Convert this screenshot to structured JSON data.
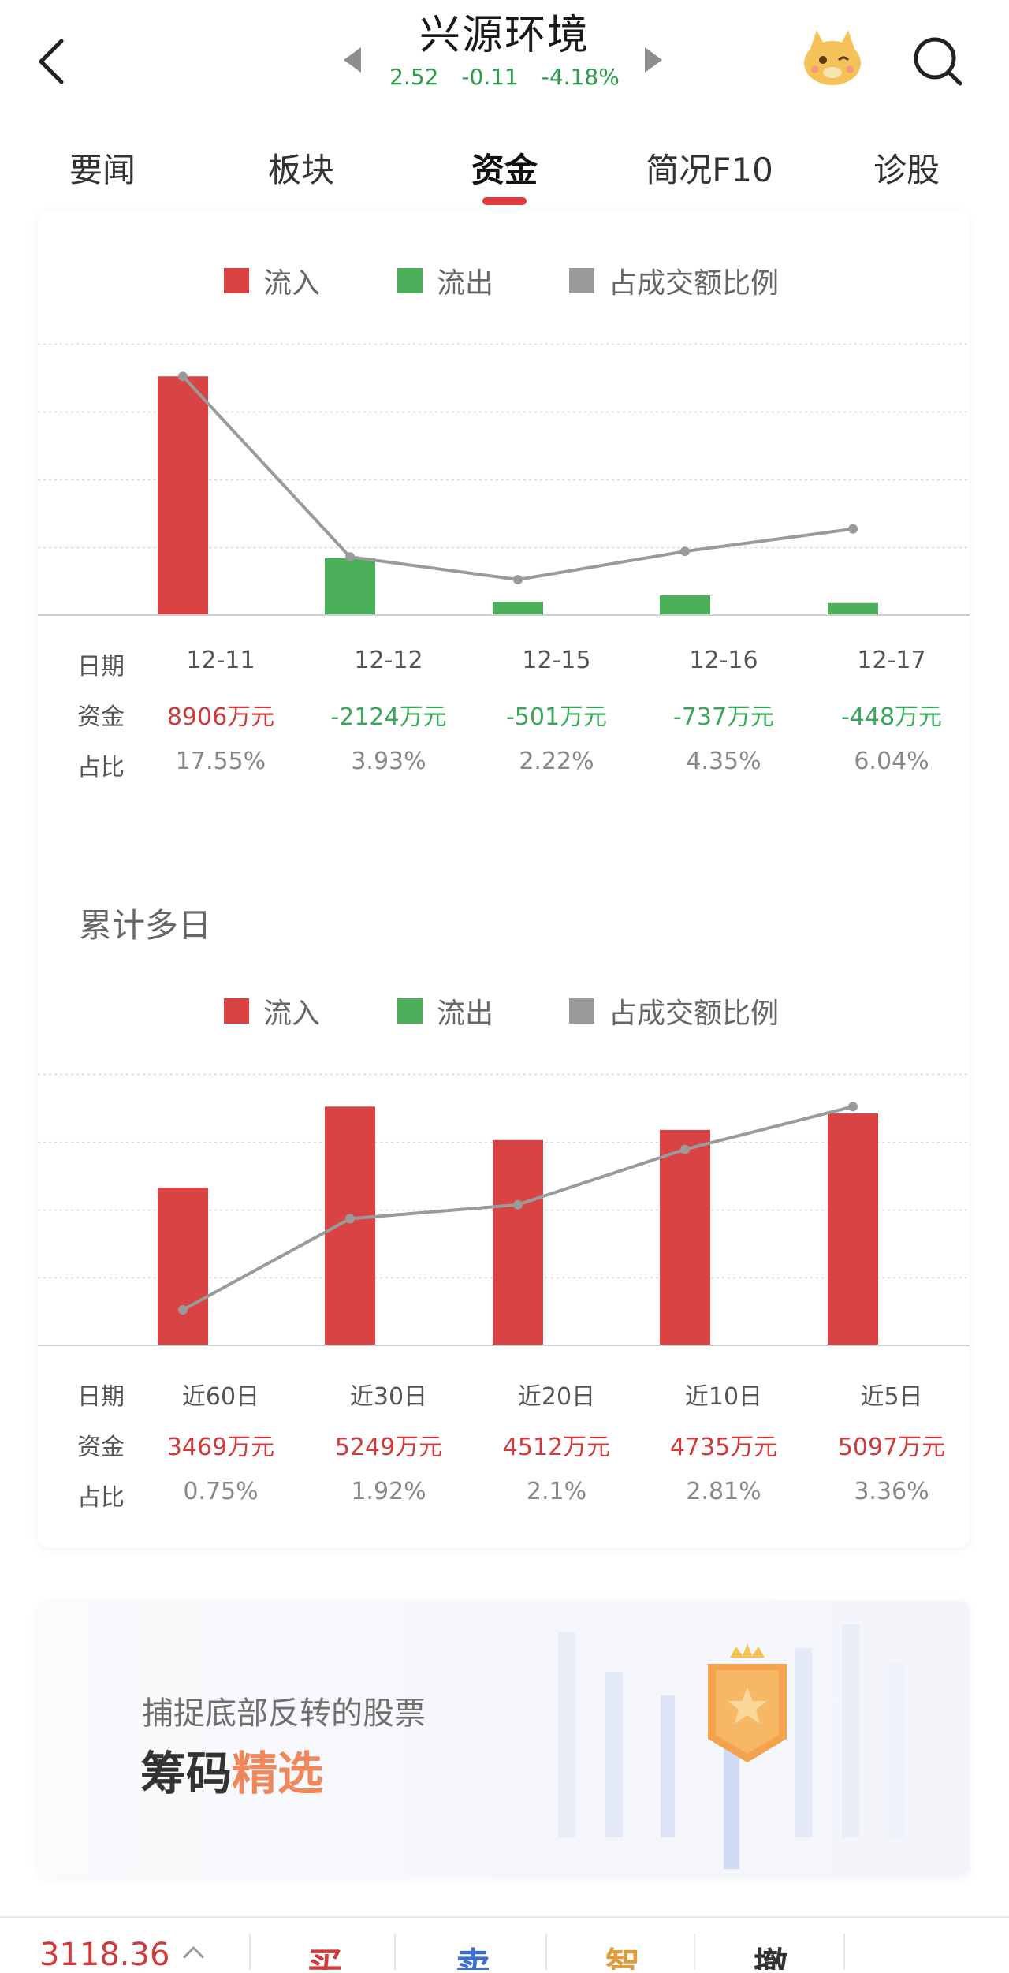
{
  "header": {
    "stock_name": "兴源环境",
    "price": "2.52",
    "change": "-0.11",
    "change_pct": "-4.18%",
    "quote_color": "#2e9e4c"
  },
  "tabs": [
    {
      "label": "要闻"
    },
    {
      "label": "板块"
    },
    {
      "label": "资金",
      "active": true
    },
    {
      "label": "简况F10"
    },
    {
      "label": "诊股"
    }
  ],
  "legend": {
    "inflow": "流入",
    "outflow": "流出",
    "ratio": "占成交额比例",
    "colors": {
      "inflow": "#d94343",
      "outflow": "#4caf5a",
      "ratio": "#9a9a9a"
    }
  },
  "labels": {
    "date": "日期",
    "fund": "资金",
    "ratio": "占比"
  },
  "daily": {
    "columns": [
      {
        "date": "12-11",
        "fund": "8906万元",
        "pct": "17.55%"
      },
      {
        "date": "12-12",
        "fund": "-2124万元",
        "pct": "3.93%"
      },
      {
        "date": "12-15",
        "fund": "-501万元",
        "pct": "2.22%"
      },
      {
        "date": "12-16",
        "fund": "-737万元",
        "pct": "4.35%"
      },
      {
        "date": "12-17",
        "fund": "-448万元",
        "pct": "6.04%"
      }
    ]
  },
  "cumulative": {
    "title": "累计多日",
    "columns": [
      {
        "date": "近60日",
        "fund": "3469万元",
        "pct": "0.75%"
      },
      {
        "date": "近30日",
        "fund": "5249万元",
        "pct": "1.92%"
      },
      {
        "date": "近20日",
        "fund": "4512万元",
        "pct": "2.1%"
      },
      {
        "date": "近10日",
        "fund": "4735万元",
        "pct": "2.81%"
      },
      {
        "date": "近5日",
        "fund": "5097万元",
        "pct": "3.36%"
      }
    ]
  },
  "chart_data": [
    {
      "type": "bar",
      "categories": [
        "12-11",
        "12-12",
        "12-15",
        "12-16",
        "12-17"
      ],
      "series": [
        {
          "name": "流入",
          "values": [
            8906,
            0,
            0,
            0,
            0
          ]
        },
        {
          "name": "流出",
          "values": [
            0,
            -2124,
            -501,
            -737,
            -448
          ]
        },
        {
          "name": "占成交额比例",
          "type": "line",
          "values": [
            17.55,
            3.93,
            2.22,
            4.35,
            6.04
          ]
        }
      ],
      "units": {
        "fund": "万元",
        "ratio": "%"
      },
      "grid": true,
      "legend": "top-center"
    },
    {
      "type": "bar",
      "categories": [
        "近60日",
        "近30日",
        "近20日",
        "近10日",
        "近5日"
      ],
      "series": [
        {
          "name": "流入",
          "values": [
            3469,
            5249,
            4512,
            4735,
            5097
          ]
        },
        {
          "name": "流出",
          "values": [
            0,
            0,
            0,
            0,
            0
          ]
        },
        {
          "name": "占成交额比例",
          "type": "line",
          "values": [
            0.75,
            1.92,
            2.1,
            2.81,
            3.36
          ]
        }
      ],
      "units": {
        "fund": "万元",
        "ratio": "%"
      },
      "grid": true,
      "legend": "top-center"
    }
  ],
  "banner": {
    "subtitle": "捕捉底部反转的股票",
    "title_main": "筹码",
    "title_accent": "精选"
  },
  "bottom_bar": {
    "index_value": "3118.36",
    "buttons": [
      {
        "label": "买",
        "color": "#d03a3a"
      },
      {
        "label": "卖",
        "color": "#3a6fd0"
      },
      {
        "label": "智",
        "color": "#e09a3a"
      },
      {
        "label": "撤",
        "color": "#333333"
      }
    ]
  }
}
